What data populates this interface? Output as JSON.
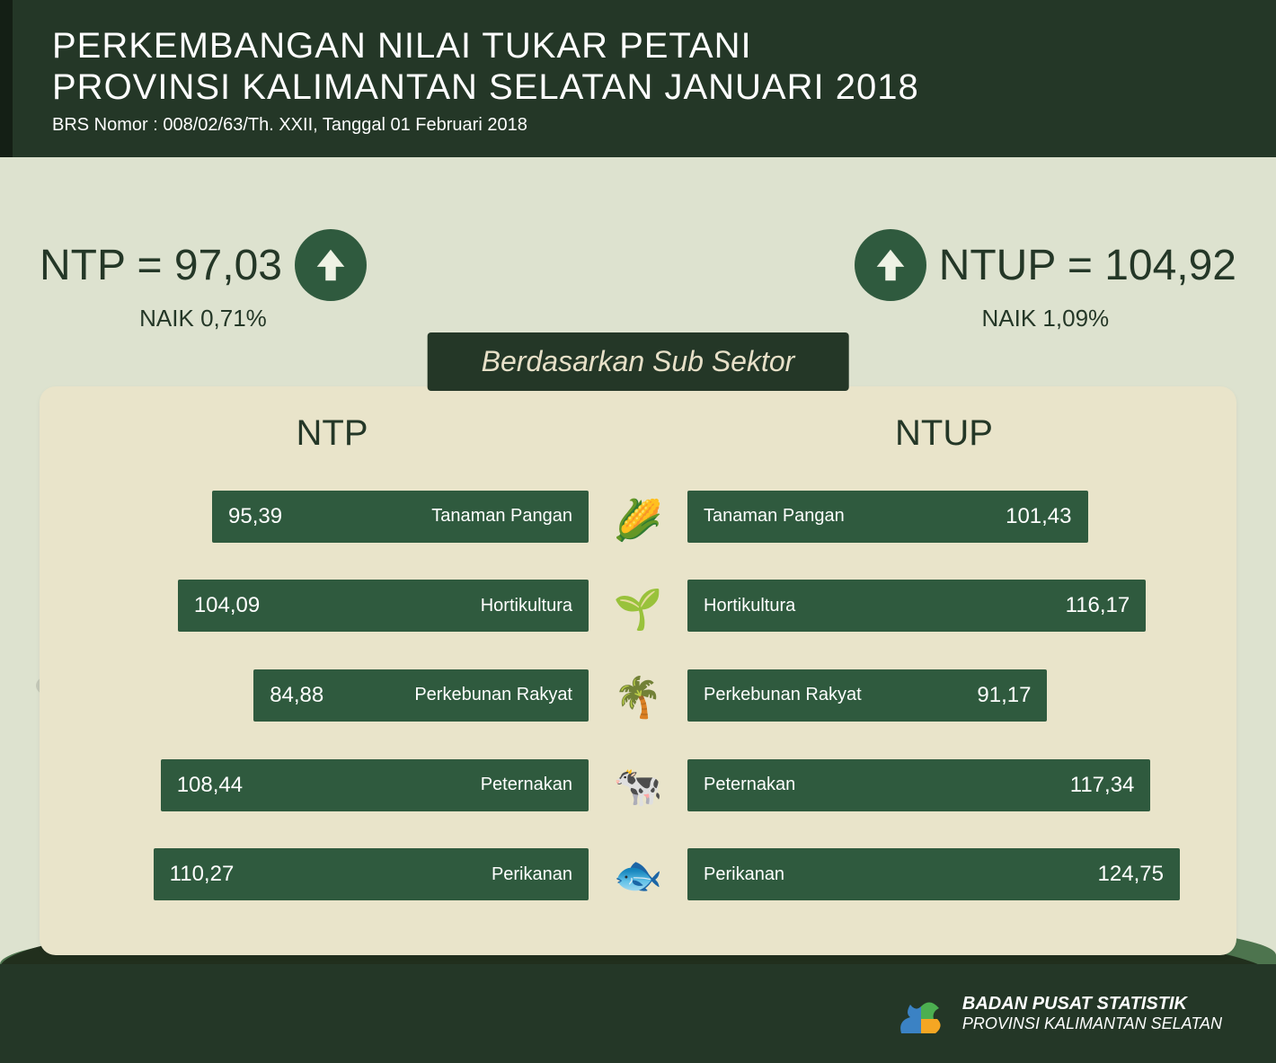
{
  "header": {
    "title_line1": "PERKEMBANGAN NILAI TUKAR PETANI",
    "title_line2": "PROVINSI KALIMANTAN SELATAN JANUARI 2018",
    "subtitle": "BRS Nomor : 008/02/63/Th. XXII, Tanggal 01 Februari 2018"
  },
  "kpi_left": {
    "main": "NTP = 97,03",
    "sub": "NAIK  0,71%"
  },
  "kpi_right": {
    "main": "NTUP = 104,92",
    "sub": "NAIK  1,09%"
  },
  "section_title": "Berdasarkan Sub Sektor",
  "columns": {
    "left_title": "NTP",
    "right_title": "NTUP"
  },
  "chart": {
    "type": "paired-bar",
    "max_value": 130,
    "bar_color": "#2f5a3e",
    "text_color": "#ffffff",
    "panel_bg": "#e9e4ca",
    "rows": [
      {
        "label": "Tanaman Pangan",
        "ntp": 95.39,
        "ntp_disp": "95,39",
        "ntup": 101.43,
        "ntup_disp": "101,43",
        "icon": "🌽"
      },
      {
        "label": "Hortikultura",
        "ntp": 104.09,
        "ntp_disp": "104,09",
        "ntup": 116.17,
        "ntup_disp": "116,17",
        "icon": "🌱"
      },
      {
        "label": "Perkebunan Rakyat",
        "ntp": 84.88,
        "ntp_disp": "84,88",
        "ntup": 91.17,
        "ntup_disp": "91,17",
        "icon": "🌴"
      },
      {
        "label": "Peternakan",
        "ntp": 108.44,
        "ntp_disp": "108,44",
        "ntup": 117.34,
        "ntup_disp": "117,34",
        "icon": "🐄"
      },
      {
        "label": "Perikanan",
        "ntp": 110.27,
        "ntp_disp": "110,27",
        "ntup": 124.75,
        "ntup_disp": "124,75",
        "icon": "🐟"
      }
    ]
  },
  "footer": {
    "line1": "BADAN PUSAT STATISTIK",
    "line2": "PROVINSI KALIMANTAN SELATAN"
  },
  "colors": {
    "dark_green": "#243727",
    "mid_green": "#2f5a3e",
    "page_bg": "#dde2cf",
    "panel_bg": "#e9e4ca",
    "cream": "#e7e0c8"
  }
}
